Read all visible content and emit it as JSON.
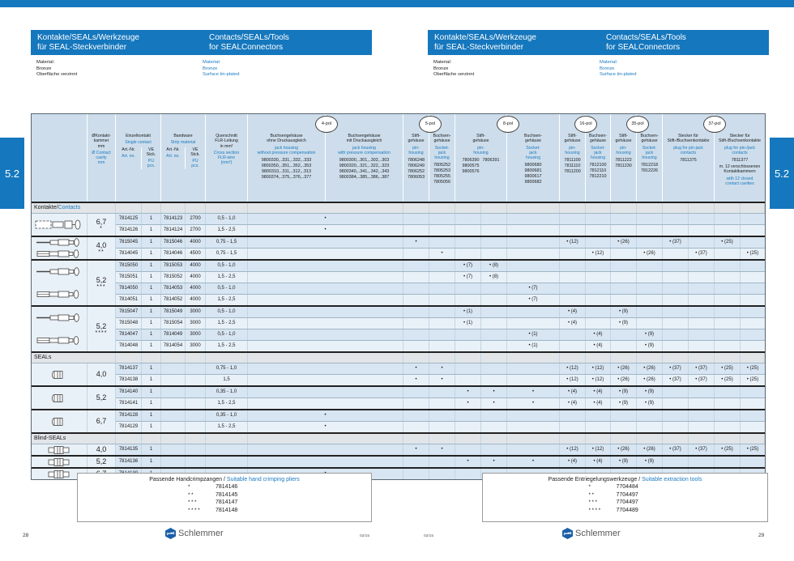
{
  "page": {
    "left_number": "28",
    "right_number": "29",
    "issue": "02/15",
    "brand": "Schlemmer",
    "tab": "5.2"
  },
  "colors": {
    "header_blue": "#1577bd",
    "accent_text_blue": "#1b7ac0",
    "table_header_bg": "#cdddeb",
    "row_a": "#d8e5f2",
    "row_b": "#e9f1f8"
  },
  "headers": {
    "de_line1": "Kontakte/SEALs/Werkzeuge",
    "de_line2": "für SEAL-Steckverbinder",
    "en_line1": "Contacts/SEALs/Tools",
    "en_line2": "for SEALConnectors",
    "material_de": [
      "Material:",
      "Bronze",
      "Oberfläche verzinnt"
    ],
    "material_en": [
      "Material:",
      "Bronze",
      "Surface tin-plated"
    ]
  },
  "table": {
    "pol_labels": [
      "4-pol",
      "5-pol",
      "8-pol",
      "16-pol",
      "35-pol",
      "37-pol"
    ],
    "cols": {
      "dia": {
        "de": [
          "ØKontakt-",
          "kammer",
          "mm"
        ],
        "en": [
          "Ø Contact",
          "cavity",
          "mm"
        ]
      },
      "einzel": {
        "de": "Einzelkontakt",
        "en": "Single contact"
      },
      "band": {
        "de": "Bandware",
        "en": "Strip material"
      },
      "artnr": {
        "de": "Art.-Nr.",
        "en": "Art. no."
      },
      "ve": {
        "de": [
          "VE",
          "Stck."
        ],
        "en": [
          "PU",
          "pcs."
        ]
      },
      "q": {
        "de": [
          "Querschnitt",
          "FLR-Leitung",
          "in mm²"
        ],
        "en": [
          "Cross section",
          "FLR-wire",
          "(mm²)"
        ]
      },
      "p4a": {
        "de": [
          "Buchsengehäuse",
          "ohne Druckausgleich"
        ],
        "en": [
          "jack housing",
          "without pressure compensation"
        ],
        "nums": [
          "9800330,..331,..332,..333",
          "9800350,..351,..352,..353",
          "9800310,..311,..312,..313",
          "9800374,..375,..376,..377"
        ]
      },
      "p4b": {
        "de": [
          "Buchsengehäuse",
          "mit Druckausgleich"
        ],
        "en": [
          "jack housing",
          "with pressure compensation"
        ],
        "nums": [
          "9800300,..301,..302,..303",
          "9800320,..321,..322,..323",
          "9800340,..341,..342,..343",
          "9800384,..385,..386,..387"
        ]
      },
      "p5p": {
        "de": [
          "Stift-",
          "gehäuse"
        ],
        "en": [
          "pin-",
          "housing"
        ],
        "nums": [
          "7806248",
          "7806249",
          "7806252",
          "7806053"
        ]
      },
      "p5s": {
        "de": [
          "Buchsen-",
          "gehäuse"
        ],
        "en": [
          "Socket-",
          "jack",
          "housing"
        ],
        "nums": [
          "7805252",
          "7805253",
          "7805255",
          "7805056"
        ]
      },
      "p8p": {
        "de": [
          "Stift-",
          "gehäuse"
        ],
        "en": [
          "pin-",
          "housing"
        ],
        "nums_a": [
          "7806390",
          "9800575",
          "9800576"
        ],
        "nums_b": [
          "7806391"
        ]
      },
      "p8s": {
        "de": [
          "Buchsen-",
          "gehäuse"
        ],
        "en": [
          "Socket-",
          "jack",
          "housing"
        ],
        "nums": [
          "9800680",
          "9800681",
          "9800617",
          "9800682"
        ]
      },
      "p16p": {
        "de": [
          "Stift-",
          "gehäuse"
        ],
        "en": [
          "pin-",
          "housing"
        ],
        "nums": [
          "7811100",
          "7811110",
          "7811200"
        ]
      },
      "p16s": {
        "de": [
          "Buchsen-",
          "gehäuse"
        ],
        "en": [
          "Socket-",
          "jack",
          "housing"
        ],
        "nums": [
          "7812100",
          "7812110",
          "7812210"
        ]
      },
      "p35p": {
        "de": [
          "Stift-",
          "gehäuse"
        ],
        "en": [
          "pin-",
          "housing"
        ],
        "nums": [
          "7811222",
          "7811230"
        ]
      },
      "p35s": {
        "de": [
          "Buchsen-",
          "gehäuse"
        ],
        "en": [
          "Socket-",
          "jack",
          "housing"
        ],
        "nums": [
          "7812218",
          "7812226"
        ]
      },
      "p37a": {
        "de": [
          "Stecker für",
          "Stift-/Buchsenkontakte"
        ],
        "en": [
          "plug for pin-jack",
          "contacts"
        ],
        "nums": [
          "7811375"
        ]
      },
      "p37b": {
        "de": [
          "Stecker für",
          "Stift-/Buchsenkontakte"
        ],
        "en": [
          "plug for pin-/jack",
          "contacts"
        ],
        "nums": [
          "7811377"
        ],
        "extra_de": [
          "m. 12 verschlossenen",
          "Kontaktkammern"
        ],
        "extra_en": [
          "with 12 closed",
          "contact cavities"
        ]
      }
    },
    "sections": [
      {
        "label_de": "Kontakte",
        "label_en": "Contacts",
        "slash": true,
        "groups": [
          {
            "dia": "6,7",
            "stars": "*",
            "icons": [
              "c67"
            ],
            "rows": [
              {
                "ea": "7814125",
                "ev": "1",
                "ba": "7814123",
                "bv": "2700",
                "q": "0,5 - 1,0",
                "marks": {
                  "pol4": "•"
                }
              },
              {
                "ea": "7814126",
                "ev": "1",
                "ba": "7814124",
                "bv": "2700",
                "q": "1,5 - 2,5",
                "marks": {
                  "pol4": "•"
                }
              }
            ]
          },
          {
            "dia": "4,0",
            "stars": "**",
            "icons": [
              "pin",
              "socket"
            ],
            "rows": [
              {
                "ea": "7815045",
                "ev": "1",
                "ba": "7815046",
                "bv": "4000",
                "q": "0,75 - 1,5",
                "marks": {
                  "p5p": "•",
                  "p16p": "• (12)",
                  "p35p": "• (26)",
                  "p37a1": "• (37)",
                  "p37b1": "• (25)"
                }
              },
              {
                "ea": "7814045",
                "ev": "1",
                "ba": "7814046",
                "bv": "4500",
                "q": "0,75 - 1,5",
                "marks": {
                  "p5s": "•",
                  "p16s": "• (12)",
                  "p35s": "• (26)",
                  "p37a2": "• (37)",
                  "p37b2": "• (25)"
                }
              }
            ]
          },
          {
            "dia": "5,2",
            "stars": "***",
            "icons": [
              "pin",
              "socket"
            ],
            "rows": [
              {
                "ea": "7815050",
                "ev": "1",
                "ba": "7815053",
                "bv": "4000",
                "q": "0,5 - 1,0",
                "marks": {
                  "p8a": "• (7)",
                  "p8b": "• (8)"
                }
              },
              {
                "ea": "7815051",
                "ev": "1",
                "ba": "7815052",
                "bv": "4000",
                "q": "1,5 - 2,5",
                "marks": {
                  "p8a": "• (7)",
                  "p8b": "• (8)"
                }
              },
              {
                "ea": "7814050",
                "ev": "1",
                "ba": "7814053",
                "bv": "4000",
                "q": "0,5 - 1,0",
                "marks": {
                  "p8s": "• (7)"
                }
              },
              {
                "ea": "7814051",
                "ev": "1",
                "ba": "7814052",
                "bv": "4000",
                "q": "1,5 - 2,5",
                "marks": {
                  "p8s": "• (7)"
                }
              }
            ]
          },
          {
            "dia": "5,2",
            "stars": "****",
            "icons": [
              "pin",
              "socket"
            ],
            "rows": [
              {
                "ea": "7815047",
                "ev": "1",
                "ba": "7815049",
                "bv": "3000",
                "q": "0,5 - 1,0",
                "marks": {
                  "p8a": "• (1)",
                  "p16p": "• (4)",
                  "p35p": "• (9)"
                }
              },
              {
                "ea": "7815048",
                "ev": "1",
                "ba": "7815054",
                "bv": "3000",
                "q": "1,5 - 2,5",
                "marks": {
                  "p8a": "• (1)",
                  "p16p": "• (4)",
                  "p35p": "• (9)"
                }
              },
              {
                "ea": "7814047",
                "ev": "1",
                "ba": "7814049",
                "bv": "3000",
                "q": "0,5 - 1,0",
                "marks": {
                  "p8s": "• (1)",
                  "p16s": "• (4)",
                  "p35s": "• (9)"
                }
              },
              {
                "ea": "7814048",
                "ev": "1",
                "ba": "7814054",
                "bv": "3000",
                "q": "1,5 - 2,5",
                "marks": {
                  "p8s": "• (1)",
                  "p16s": "• (4)",
                  "p35s": "• (9)"
                }
              }
            ]
          }
        ]
      },
      {
        "label_de": "SEALs",
        "label_en": "",
        "slash": false,
        "groups": [
          {
            "dia": "4,0",
            "stars": "",
            "icons": [
              "seal"
            ],
            "rows": [
              {
                "ea": "7814137",
                "ev": "1",
                "ba": "",
                "bv": "",
                "q": "0,75 - 1,0",
                "marks": {
                  "p5p": "•",
                  "p5s": "•",
                  "p16p": "• (12)",
                  "p16s": "• (12)",
                  "p35p": "• (26)",
                  "p35s": "• (26)",
                  "p37a1": "• (37)",
                  "p37a2": "• (37)",
                  "p37b1": "• (25)",
                  "p37b2": "• (25)"
                }
              },
              {
                "ea": "7814138",
                "ev": "1",
                "ba": "",
                "bv": "",
                "q": "1,5",
                "marks": {
                  "p5p": "•",
                  "p5s": "•",
                  "p16p": "• (12)",
                  "p16s": "• (12)",
                  "p35p": "• (26)",
                  "p35s": "• (26)",
                  "p37a1": "• (37)",
                  "p37a2": "• (37)",
                  "p37b1": "• (25)",
                  "p37b2": "• (25)"
                }
              }
            ]
          },
          {
            "dia": "5,2",
            "stars": "",
            "icons": [
              "seal"
            ],
            "rows": [
              {
                "ea": "7814140",
                "ev": "1",
                "ba": "",
                "bv": "",
                "q": "0,35 - 1,0",
                "marks": {
                  "p8a": "•",
                  "p8b": "•",
                  "p8s": "•",
                  "p16p": "• (4)",
                  "p16s": "• (4)",
                  "p35p": "• (9)",
                  "p35s": "• (9)"
                }
              },
              {
                "ea": "7814141",
                "ev": "1",
                "ba": "",
                "bv": "",
                "q": "1,5 - 2,5",
                "marks": {
                  "p8a": "•",
                  "p8b": "•",
                  "p8s": "•",
                  "p16p": "• (4)",
                  "p16s": "• (4)",
                  "p35p": "• (9)",
                  "p35s": "• (9)"
                }
              }
            ]
          },
          {
            "dia": "6,7",
            "stars": "",
            "icons": [
              "seal"
            ],
            "rows": [
              {
                "ea": "7814128",
                "ev": "1",
                "ba": "",
                "bv": "",
                "q": "0,35 - 1,0",
                "marks": {
                  "pol4": "•"
                }
              },
              {
                "ea": "7814129",
                "ev": "1",
                "ba": "",
                "bv": "",
                "q": "1,5 - 2,5",
                "marks": {
                  "pol4": "•"
                }
              }
            ]
          }
        ]
      },
      {
        "label_de": "Blind-SEALs",
        "label_en": "",
        "slash": false,
        "groups": [
          {
            "dia": "4,0",
            "stars": "",
            "icons": [
              "blind"
            ],
            "rows": [
              {
                "ea": "7814135",
                "ev": "1",
                "ba": "",
                "bv": "",
                "q": "",
                "marks": {
                  "p5p": "•",
                  "p5s": "•",
                  "p16p": "• (12)",
                  "p16s": "• (12)",
                  "p35p": "• (26)",
                  "p35s": "• (26)",
                  "p37a1": "• (37)",
                  "p37a2": "• (37)",
                  "p37b1": "• (25)",
                  "p37b2": "• (25)"
                }
              }
            ]
          },
          {
            "dia": "5,2",
            "stars": "",
            "icons": [
              "blind"
            ],
            "rows": [
              {
                "ea": "7814136",
                "ev": "1",
                "ba": "",
                "bv": "",
                "q": "",
                "marks": {
                  "p8a": "•",
                  "p8b": "•",
                  "p8s": "•",
                  "p16p": "• (4)",
                  "p16s": "• (4)",
                  "p35p": "• (9)",
                  "p35s": "• (9)"
                }
              }
            ]
          },
          {
            "dia": "6,7",
            "stars": "",
            "icons": [
              "blind"
            ],
            "rows": [
              {
                "ea": "7814130",
                "ev": "1",
                "ba": "",
                "bv": "",
                "q": "",
                "marks": {
                  "pol4": "•"
                }
              }
            ]
          }
        ]
      }
    ]
  },
  "footers": {
    "left": {
      "title_de": "Passende Handcrimpzangen /",
      "title_en": "Suitable hand crimping pliers",
      "rows": [
        {
          "stars": "*",
          "num": "7814146"
        },
        {
          "stars": "**",
          "num": "7814145"
        },
        {
          "stars": "***",
          "num": "7814147"
        },
        {
          "stars": "****",
          "num": "7814148"
        }
      ]
    },
    "right": {
      "title_de": "Passende Entriegelungswerkzeuge /",
      "title_en": "Suitable extraction tools",
      "rows": [
        {
          "stars": "*",
          "num": "7704484"
        },
        {
          "stars": "**",
          "num": "7704497"
        },
        {
          "stars": "***",
          "num": "7704497"
        },
        {
          "stars": "****",
          "num": "7704489"
        }
      ]
    }
  }
}
